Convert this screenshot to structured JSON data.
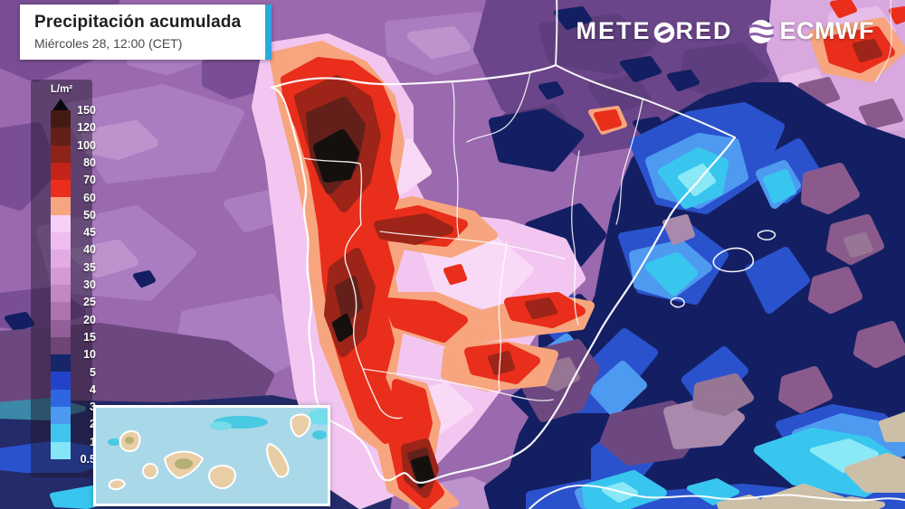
{
  "header": {
    "title": "Precipitación acumulada",
    "subtitle": "Miércoles 28, 12:00 (CET)"
  },
  "branding": {
    "meteored_prefix": "METE",
    "meteored_suffix": "RED",
    "ecmwf_label": "ECMWF"
  },
  "icons": {
    "meteored_o": "slashed-circle-o",
    "ecmwf_globe": "striped-globe"
  },
  "legend": {
    "unit": "L/m²",
    "tick_labels": [
      "150",
      "120",
      "100",
      "80",
      "70",
      "60",
      "50",
      "45",
      "40",
      "35",
      "30",
      "25",
      "20",
      "15",
      "10",
      "5",
      "4",
      "3",
      "2",
      "1",
      "0.5"
    ],
    "band_colors": [
      "#441b12",
      "#641f18",
      "#8e2318",
      "#c22417",
      "#ea2e1b",
      "#f7a57e",
      "#f8cff6",
      "#f0bcf0",
      "#e3abe3",
      "#d49ad5",
      "#c287c3",
      "#ad74af",
      "#935f98",
      "#6f4573",
      "#172669",
      "#2243c9",
      "#2e66e1",
      "#4c9af0",
      "#40c6ee",
      "#84e5f6"
    ],
    "overflow_color": "#0a0a0a"
  },
  "map": {
    "region": "iberian-peninsula-and-balearics",
    "inset_region": "canary-islands",
    "palette": {
      "base": "#9a69ae",
      "purpleLight": "#aa7dc0",
      "purpleLighter": "#bd93ce",
      "purpleDark": "#7a4e95",
      "purpleDarker": "#5e3e7d",
      "bandDark": "#6b4589",
      "lavender": "#d9a8de",
      "lavBright": "#e7bce9",
      "edgePink": "#cf9ed6",
      "mauve": "#8a5a8c",
      "muted": "#6d4880",
      "puce": "#967595",
      "puceLight": "#a98aad",
      "pink": "#f2c6f0",
      "pinkPale": "#f8daf6",
      "salmon": "#f7a57e",
      "red": "#e92e1b",
      "darkRed": "#9c2418",
      "maroon": "#63201a",
      "black": "#15100d",
      "navy": "#141f63",
      "navy2": "#232b69",
      "blue": "#2a52cc",
      "lightBlue": "#4e9af0",
      "cyan": "#38c6ef",
      "cyanPale": "#8ae8f7",
      "teal": "#3b88a8",
      "tan": "#ccbfa7",
      "line": "#ffffff",
      "seaInset": "#a9d8e9",
      "island": "#e9cda5",
      "islandGreen": "#a8a86a",
      "insetCyan": "#49c9e2",
      "insetCyanPale": "#74dcea",
      "titleAccent": "#2aa9dd"
    }
  }
}
